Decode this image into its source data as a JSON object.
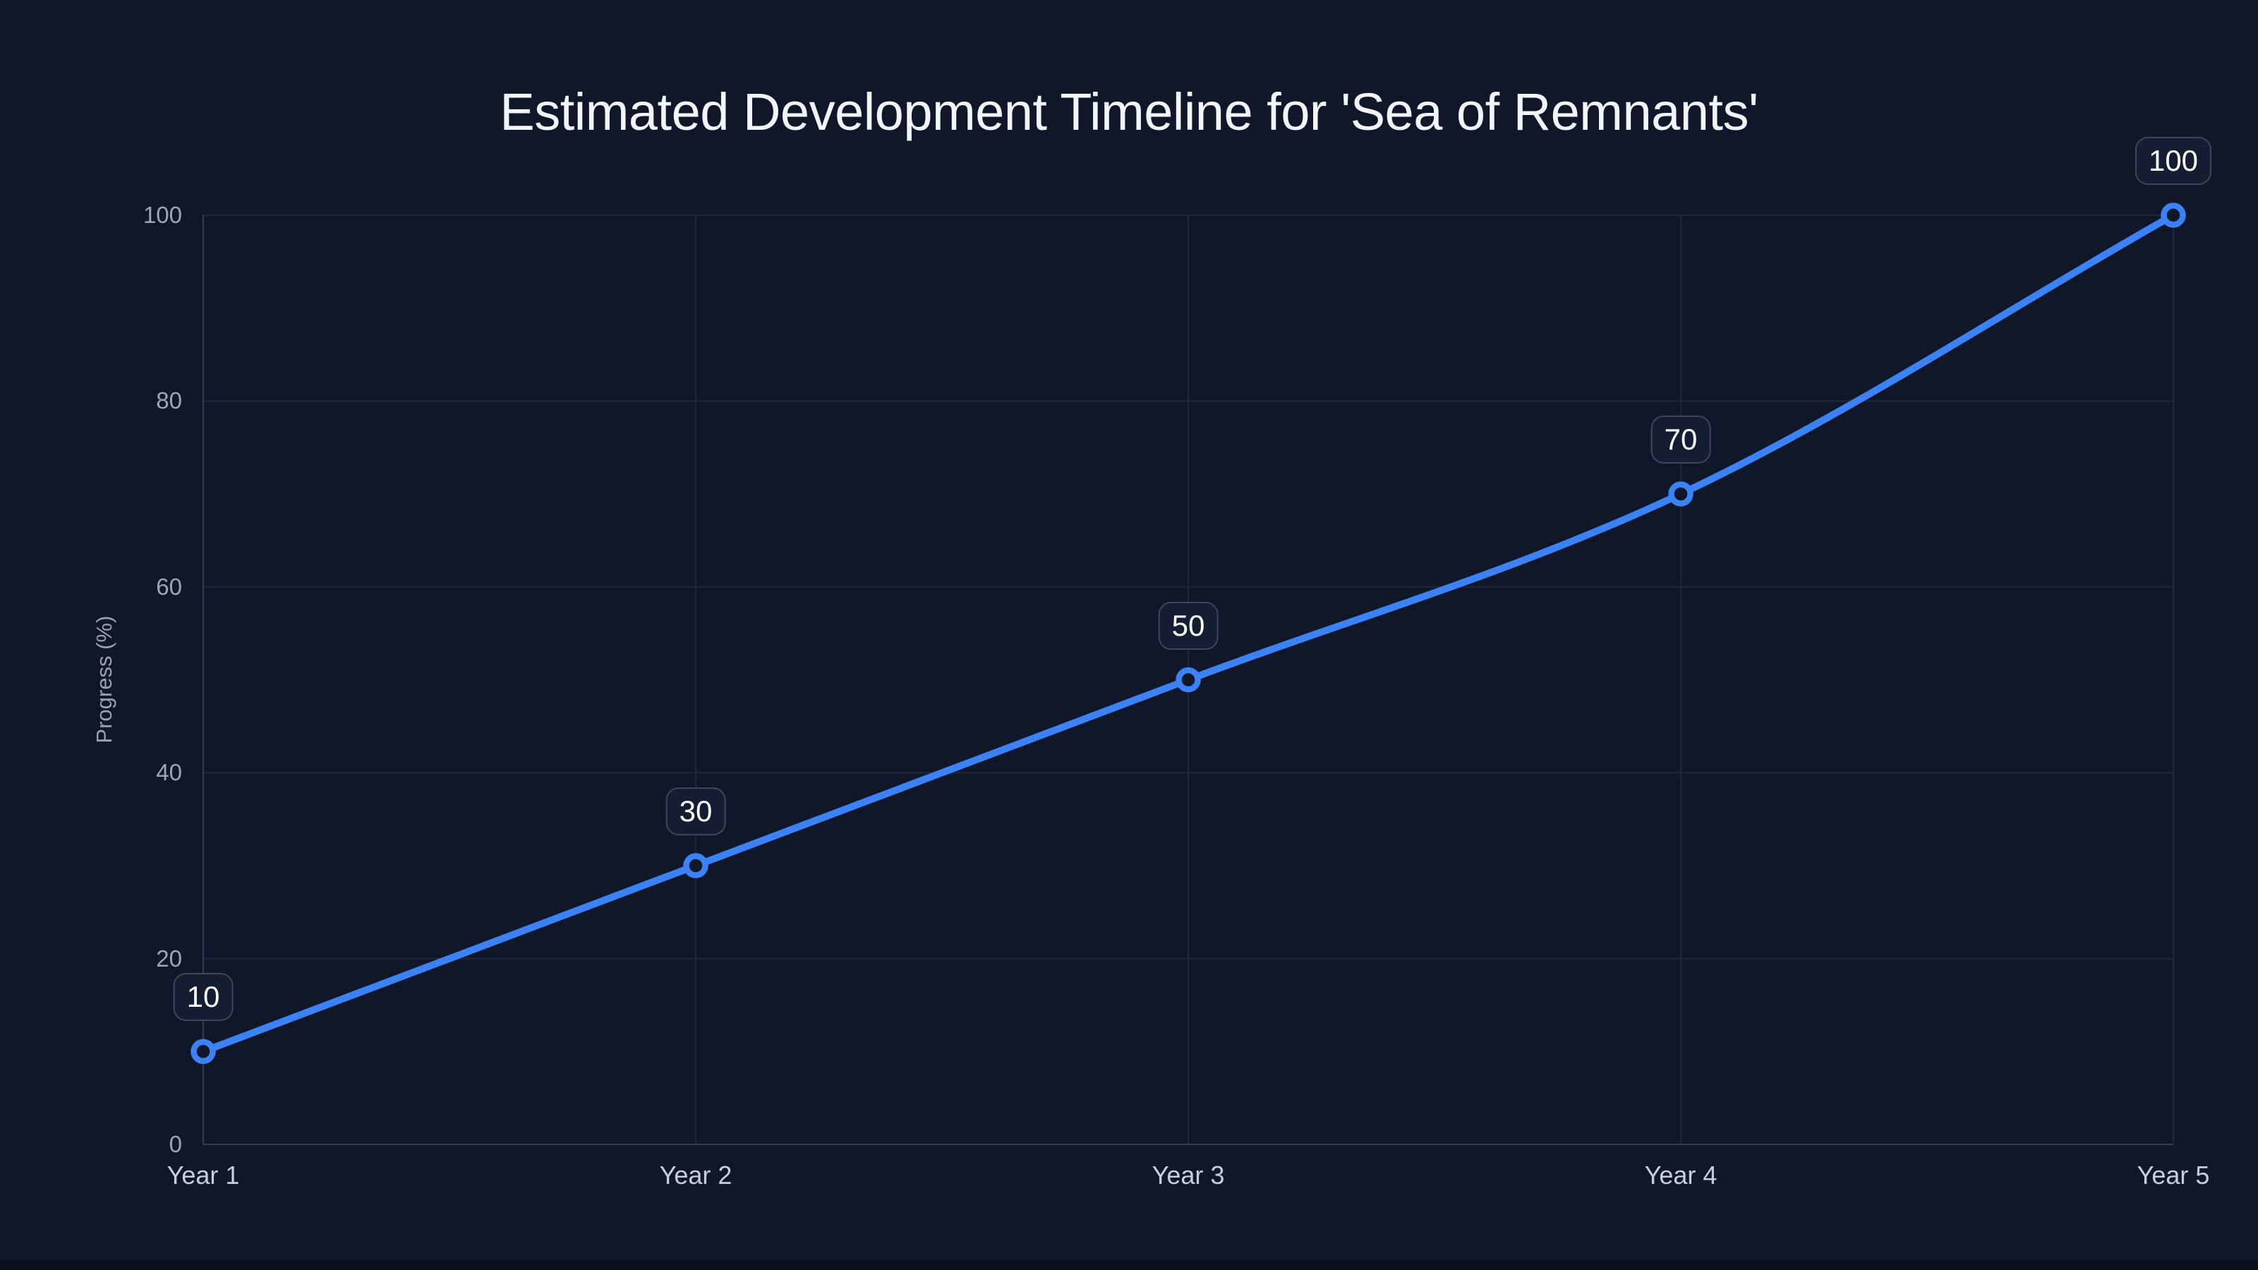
{
  "title": "Estimated Development Timeline for 'Sea of Remnants'",
  "chart_data": {
    "type": "line",
    "categories": [
      "Year 1",
      "Year 2",
      "Year 3",
      "Year 4",
      "Year 5"
    ],
    "series": [
      {
        "name": "Progress",
        "values": [
          10,
          30,
          50,
          70,
          100
        ]
      }
    ],
    "point_labels": [
      "10",
      "30",
      "50",
      "70",
      "100"
    ],
    "title": "Estimated Development Timeline for 'Sea of Remnants'",
    "xlabel": "",
    "ylabel": "Progress (%)",
    "ylim": [
      0,
      100
    ],
    "yticks": [
      0,
      20,
      40,
      60,
      80,
      100
    ],
    "grid": true,
    "legend": "none",
    "interpolation": "monotone"
  },
  "colors": {
    "background": "#0f1728",
    "accent_blue": "#3b82f6",
    "gridline": "#1e2940",
    "axis_border": "#323e55",
    "title_text": "#f2f5fa",
    "y_tick_text": "#9aa7bb",
    "x_tick_text": "#c7cfdc",
    "axis_title_text": "#95a2b8",
    "label_box_bg": "#141d31",
    "label_box_border": "#3c475d",
    "label_text": "#ffffff",
    "marker_fill": "#0f1728"
  }
}
